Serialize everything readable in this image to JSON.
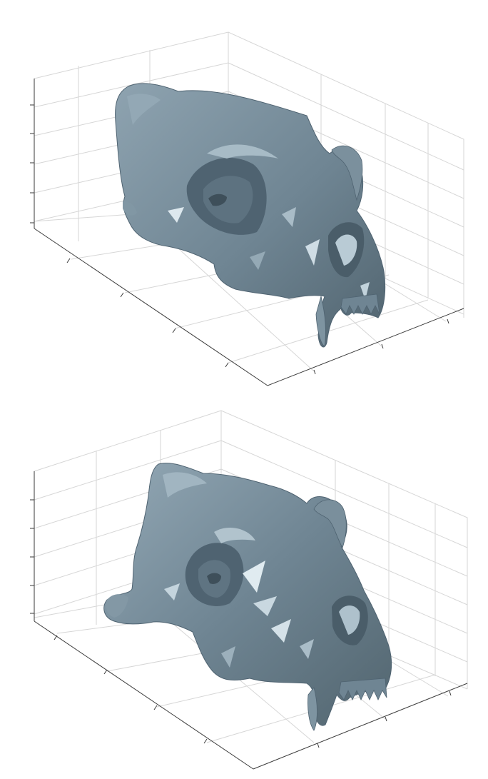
{
  "figure": {
    "panels": [
      {
        "id": "top",
        "subject": "skull-mesh",
        "view": "3d-axes"
      },
      {
        "id": "bottom",
        "subject": "skull-mesh",
        "view": "3d-axes"
      }
    ],
    "colors": {
      "mesh_base": "#6f8593",
      "mesh_shadow": "#4f6371",
      "mesh_light": "#9fb3bf",
      "mesh_highlight": "#d8e4eb",
      "grid": "#d6d6d6",
      "axis": "#3a3a3a"
    },
    "grid": true
  }
}
